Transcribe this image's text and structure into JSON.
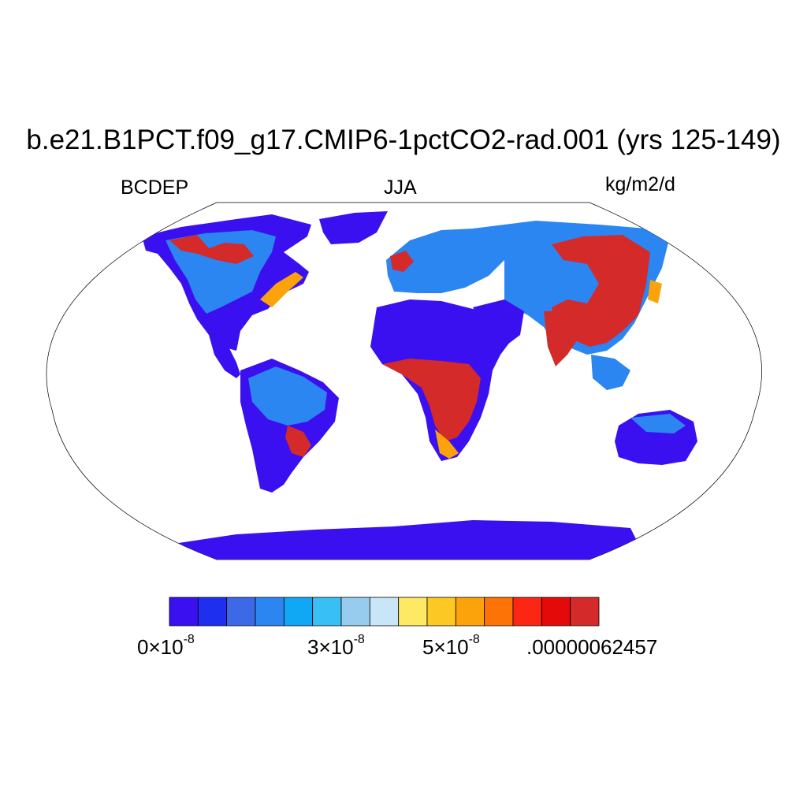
{
  "figure": {
    "title": "b.e21.B1PCT.f09_g17.CMIP6-1pctCO2-rad.001 (yrs 125-149)",
    "left_label": "BCDEP",
    "center_label": "JJA",
    "right_label": "kg/m2/d"
  },
  "colorbar": {
    "colors": [
      "#3a10f0",
      "#1f2ff0",
      "#3c6ae6",
      "#2b86f2",
      "#10a8f5",
      "#38c0f5",
      "#98ccee",
      "#c8e6f8",
      "#fde964",
      "#fcc824",
      "#fca20a",
      "#fd7306",
      "#fb2614",
      "#e40a0a",
      "#d42a2a"
    ],
    "tick_labels": [
      {
        "mantissa": "0",
        "times": "×",
        "base": "10",
        "exponent": "-8"
      },
      {
        "mantissa": "3",
        "times": "×",
        "base": "10",
        "exponent": "-8"
      },
      {
        "mantissa": "5",
        "times": "×",
        "base": "10",
        "exponent": "-8"
      },
      {
        "text": ".00000062457"
      }
    ]
  },
  "map": {
    "projection": "Robinson",
    "field": "BCDEP",
    "season": "JJA",
    "units": "kg/m2/d",
    "colors": {
      "ocean": "#ffffff",
      "outline": "#000000",
      "low": "#3a10f0",
      "mid_low": "#2b86f2",
      "mid": "#10a8f5",
      "high": "#fca20a",
      "very_high": "#d42a2a"
    }
  }
}
